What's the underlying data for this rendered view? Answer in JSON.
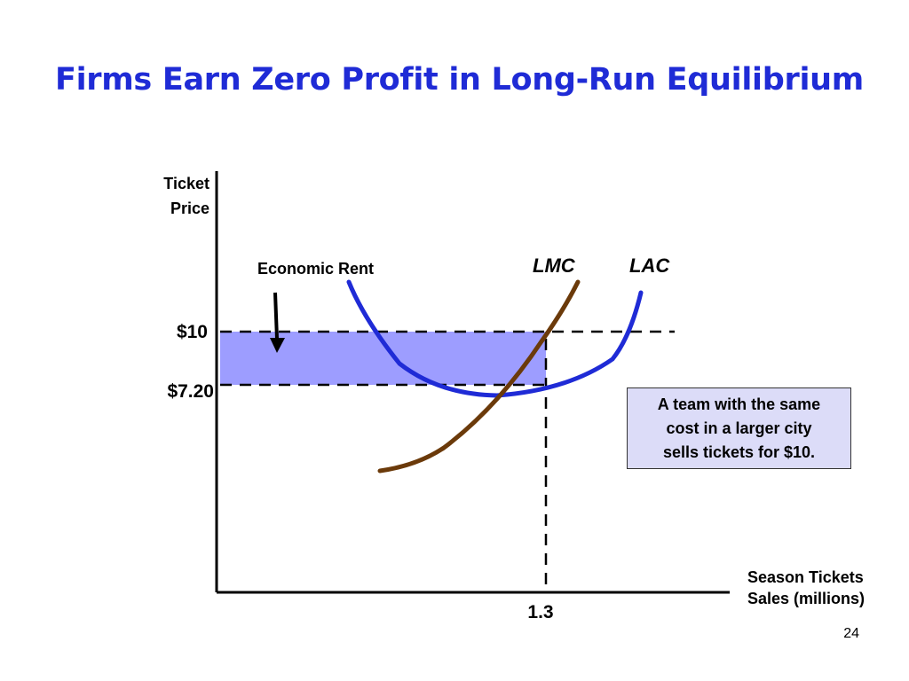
{
  "slide": {
    "title": "Firms Earn Zero Profit in Long-Run Equilibrium",
    "page_number": "24"
  },
  "diagram": {
    "y_axis_label_line1": "Ticket",
    "y_axis_label_line2": "Price",
    "x_axis_label_line1": "Season Tickets",
    "x_axis_label_line2": "Sales (millions)",
    "price_high_label": "$10",
    "price_low_label": "$7.20",
    "quantity_label": "1.3",
    "rent_label": "Economic Rent",
    "lmc_label": "LMC",
    "lac_label": "LAC",
    "note": "A team with the same\ncost in a larger city\nsells tickets for $10."
  },
  "colors": {
    "title": "#1f2bd6",
    "lac_curve": "#1f2bd6",
    "lmc_curve": "#6b3a0a",
    "rent_area": "#9d9dff",
    "note_box": "#dcdcf8"
  }
}
